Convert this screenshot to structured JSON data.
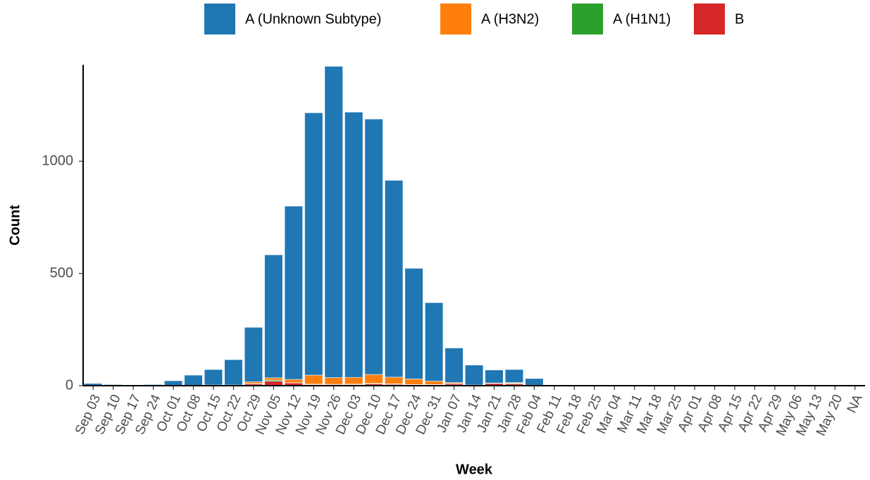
{
  "chart_data": {
    "type": "bar",
    "stacked": true,
    "x_label": "Week",
    "y_label": "Count",
    "categories": [
      "Sep 03",
      "Sep 10",
      "Sep 17",
      "Sep 24",
      "Oct 01",
      "Oct 08",
      "Oct 15",
      "Oct 22",
      "Oct 29",
      "Nov 05",
      "Nov 12",
      "Nov 19",
      "Nov 26",
      "Dec 03",
      "Dec 10",
      "Dec 17",
      "Dec 24",
      "Dec 31",
      "Jan 07",
      "Jan 14",
      "Jan 21",
      "Jan 28",
      "Feb 04",
      "Feb 11",
      "Feb 18",
      "Feb 25",
      "Mar 04",
      "Mar 11",
      "Mar 18",
      "Mar 25",
      "Apr 01",
      "Apr 08",
      "Apr 15",
      "Apr 22",
      "Apr 29",
      "May 06",
      "May 13",
      "May 20",
      "NA"
    ],
    "series": [
      {
        "name": "A (Unknown Subtype)",
        "color": "#1f77b4",
        "values": [
          10,
          5,
          2,
          5,
          21,
          45,
          69,
          113,
          243,
          548,
          772,
          1169,
          1387,
          1182,
          1138,
          877,
          493,
          350,
          154,
          89,
          58,
          58,
          30,
          1,
          1,
          1,
          1,
          1,
          1,
          1,
          1,
          1,
          1,
          1,
          1,
          1,
          1,
          1,
          1
        ]
      },
      {
        "name": "A (H3N2)",
        "color": "#ff7f0e",
        "values": [
          0,
          0,
          0,
          0,
          0,
          0,
          0,
          1,
          8,
          10,
          15,
          40,
          30,
          30,
          40,
          30,
          25,
          15,
          5,
          1,
          2,
          3,
          0,
          0,
          0,
          0,
          0,
          0,
          0,
          0,
          0,
          0,
          0,
          0,
          0,
          0,
          0,
          0,
          0
        ]
      },
      {
        "name": "A (H1N1)",
        "color": "#2ca02c",
        "values": [
          0,
          0,
          0,
          0,
          0,
          0,
          0,
          0,
          1,
          5,
          1,
          2,
          1,
          2,
          2,
          2,
          1,
          1,
          1,
          0,
          0,
          3,
          0,
          0,
          0,
          0,
          0,
          0,
          0,
          0,
          0,
          0,
          0,
          0,
          0,
          0,
          0,
          0,
          0
        ]
      },
      {
        "name": "B",
        "color": "#d62728",
        "values": [
          0,
          0,
          0,
          0,
          1,
          2,
          3,
          2,
          8,
          20,
          12,
          5,
          5,
          5,
          8,
          6,
          4,
          4,
          8,
          2,
          10,
          8,
          2,
          0,
          0,
          0,
          0,
          0,
          0,
          0,
          0,
          0,
          0,
          0,
          0,
          0,
          0,
          0,
          0
        ]
      }
    ],
    "ylim": [
      0,
      1430
    ],
    "yticks": [
      0,
      500,
      1000
    ],
    "legend": "top"
  }
}
